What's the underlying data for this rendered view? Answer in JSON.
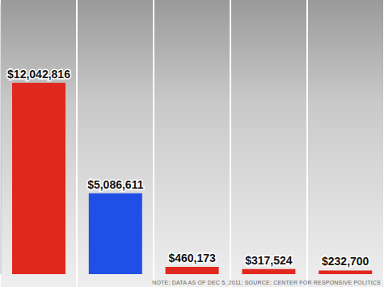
{
  "chart_data": {
    "type": "bar",
    "categories": [
      null,
      null,
      null,
      null,
      null
    ],
    "values": [
      12042816,
      5086611,
      460173,
      317524,
      232700
    ],
    "value_labels": [
      "$12,042,816",
      "$5,086,611",
      "$460,173",
      "$317,524",
      "$232,700"
    ],
    "colors": [
      "#e0281e",
      "#1f4fe6",
      "#e0281e",
      "#e0281e",
      "#e0281e"
    ],
    "ylim": [
      0,
      17000000
    ],
    "data_labels": true,
    "tick_labels": false,
    "grid": false,
    "annotation": "NOTE: DATA AS OF DEC 5, 2011; SOURCE: CENTER FOR RESPONSIVE POLITICS"
  }
}
